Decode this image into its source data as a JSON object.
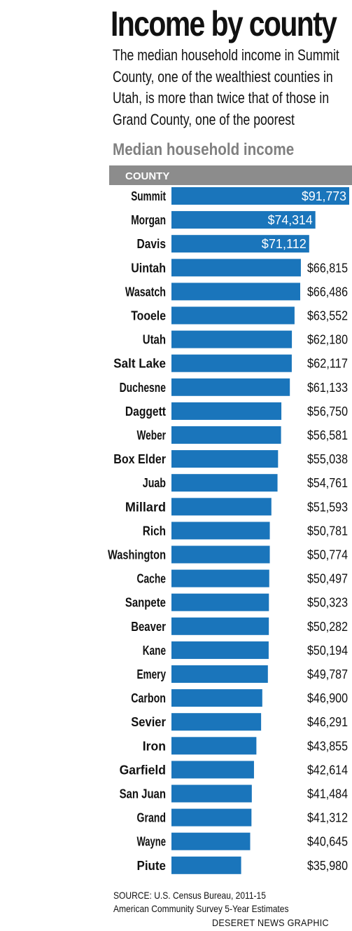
{
  "header": {
    "title": "Income by county",
    "subtitle": "The median household income in Summit County, one of the wealthiest counties in Utah, is more than twice that of those in Grand County, one of the poorest",
    "chart_heading": "Median household income"
  },
  "footer": {
    "source_line1": "SOURCE: U.S. Census Bureau, 2011-15",
    "source_line2": "American Community Survey 5-Year Estimates",
    "credit": "DESERET NEWS GRAPHIC"
  },
  "colors": {
    "bar": "#1a75bb",
    "header_band": "#8c8c8c",
    "heading_text": "#808080"
  },
  "chart_data": {
    "type": "bar",
    "orientation": "horizontal",
    "title": "Median household income",
    "category_header": "COUNTY",
    "grid": false,
    "categories": [
      "Summit",
      "Morgan",
      "Davis",
      "Uintah",
      "Wasatch",
      "Tooele",
      "Utah",
      "Salt Lake",
      "Duchesne",
      "Daggett",
      "Weber",
      "Box Elder",
      "Juab",
      "Millard",
      "Rich",
      "Washington",
      "Cache",
      "Sanpete",
      "Beaver",
      "Kane",
      "Emery",
      "Carbon",
      "Sevier",
      "Iron",
      "Garfield",
      "San Juan",
      "Grand",
      "Wayne",
      "Piute"
    ],
    "values": [
      91773,
      74314,
      71112,
      66815,
      66486,
      63552,
      62180,
      62117,
      61133,
      56750,
      56581,
      55038,
      54761,
      51593,
      50781,
      50774,
      50497,
      50323,
      50282,
      50194,
      49787,
      46900,
      46291,
      43855,
      42614,
      41484,
      41312,
      40645,
      35980
    ],
    "value_labels": [
      "$91,773",
      "$74,314",
      "$71,112",
      "$66,815",
      "$66,486",
      "$63,552",
      "$62,180",
      "$62,117",
      "$61,133",
      "$56,750",
      "$56,581",
      "$55,038",
      "$54,761",
      "$51,593",
      "$50,781",
      "$50,774",
      "$50,497",
      "$50,323",
      "$50,282",
      "$50,194",
      "$49,787",
      "$46,900",
      "$46,291",
      "$43,855",
      "$42,614",
      "$41,484",
      "$41,312",
      "$40,645",
      "$35,980"
    ],
    "labels_inside_bar_count": 3
  }
}
